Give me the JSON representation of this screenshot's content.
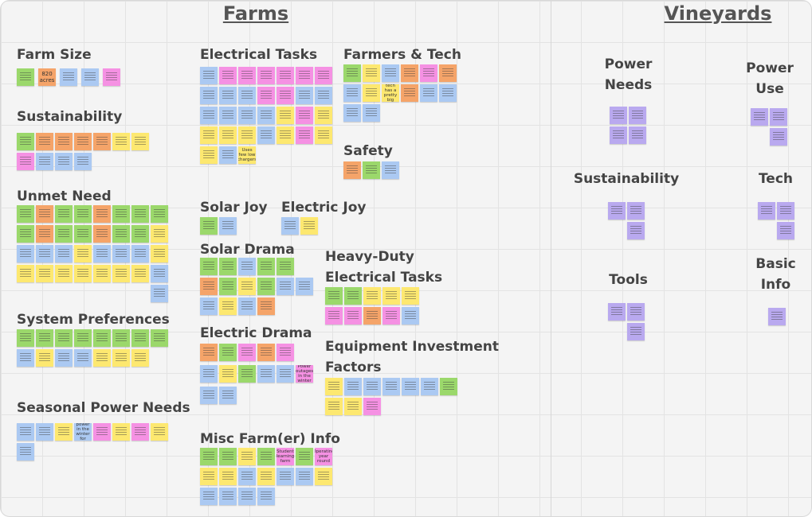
{
  "board": {
    "zones": [
      {
        "title": "Farms",
        "groups": [
          {
            "heading": "Farm Size",
            "notes": [
              "820 acres"
            ]
          },
          {
            "heading": "Sustainability",
            "notes": []
          },
          {
            "heading": "Unmet Need",
            "notes": []
          },
          {
            "heading": "System Preferences",
            "notes": []
          },
          {
            "heading": "Seasonal Power Needs",
            "notes": [
              "Needs power in the winter for heating"
            ]
          },
          {
            "heading": "Electrical Tasks",
            "notes": [
              "Uses few low chargers"
            ]
          },
          {
            "heading": "Farmers & Tech",
            "notes": [
              "New tech has a pretty big price"
            ]
          },
          {
            "heading": "Safety",
            "notes": []
          },
          {
            "heading": "Solar Joy",
            "notes": []
          },
          {
            "heading": "Electric Joy",
            "notes": []
          },
          {
            "heading": "Solar Drama",
            "notes": []
          },
          {
            "heading": "Electric Drama",
            "notes": [
              "Power outages in the winter"
            ]
          },
          {
            "heading": "Heavy-Duty Electrical Tasks",
            "notes": []
          },
          {
            "heading": "Equipment Investment Factors",
            "notes": []
          },
          {
            "heading": "Misc Farm(er) Info",
            "notes": [
              "Student learning farm",
              "Operating year round"
            ]
          }
        ]
      },
      {
        "title": "Vineyards",
        "groups": [
          {
            "heading": "Power Needs",
            "notes": []
          },
          {
            "heading": "Power Use",
            "notes": []
          },
          {
            "heading": "Sustainability",
            "notes": []
          },
          {
            "heading": "Tech",
            "notes": []
          },
          {
            "heading": "Tools",
            "notes": []
          },
          {
            "heading": "Basic Info",
            "notes": []
          }
        ]
      }
    ]
  }
}
